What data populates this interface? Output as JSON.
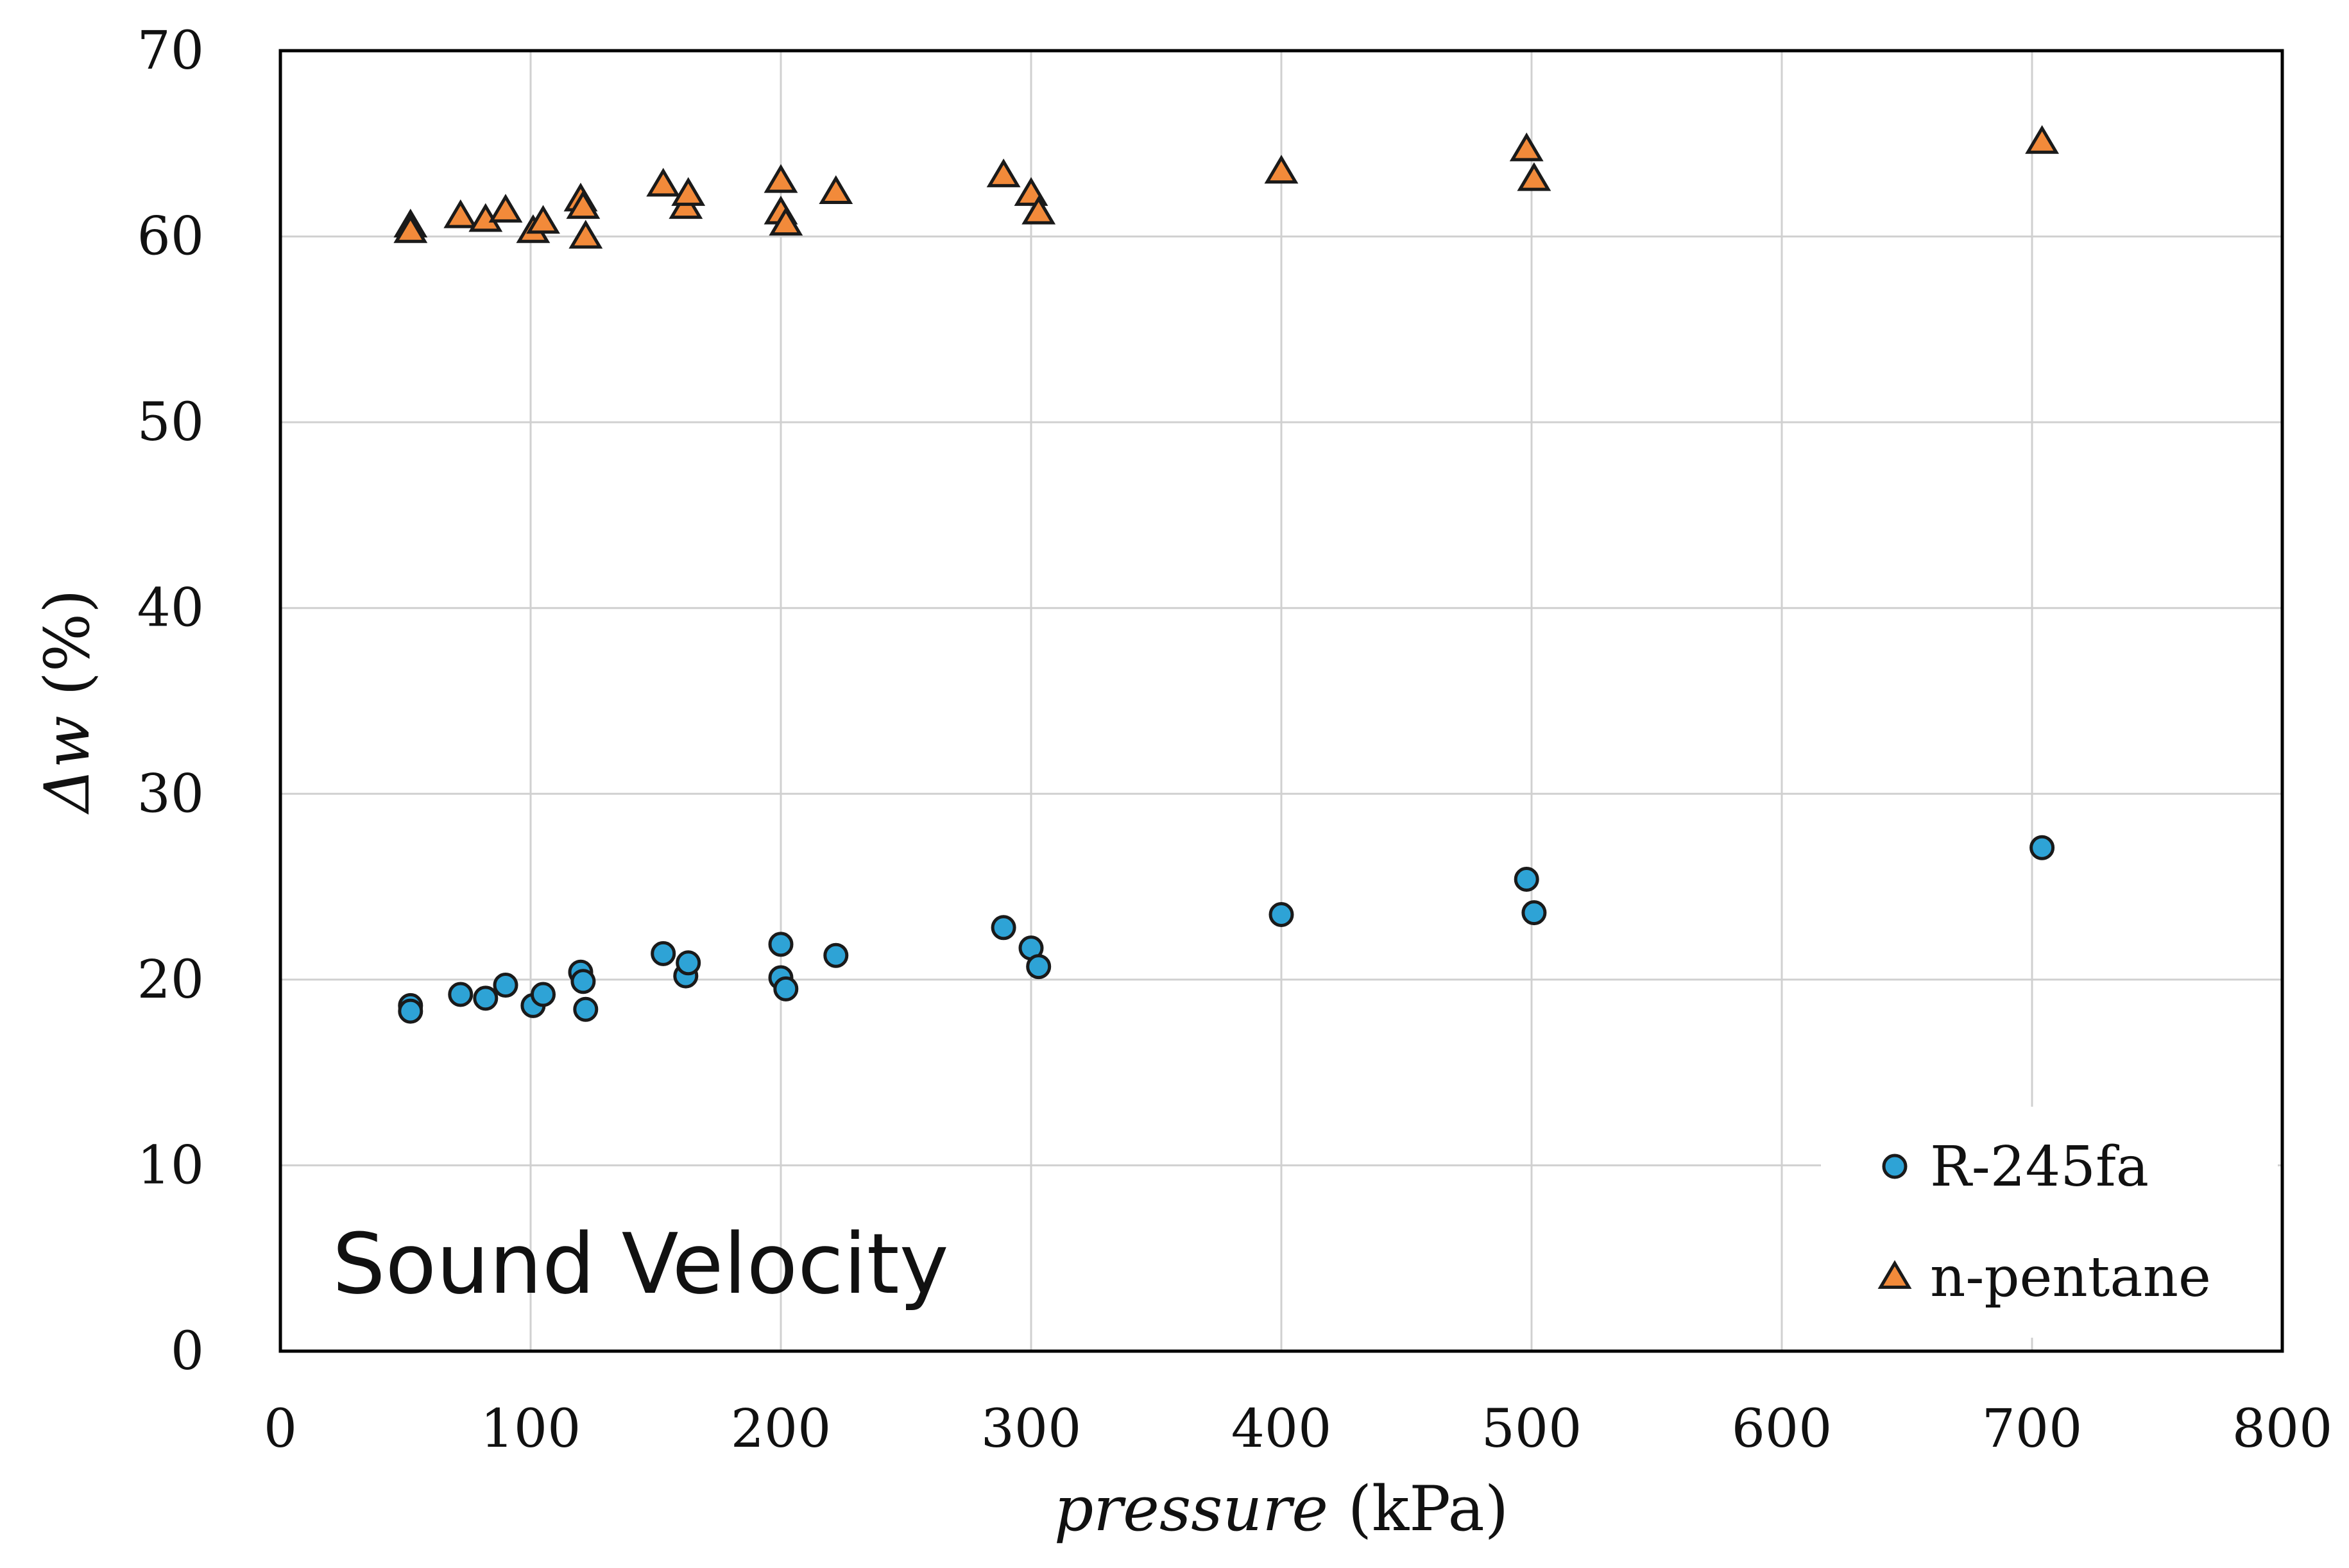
{
  "chart_data": {
    "type": "scatter",
    "title": "",
    "annotation": "Sound Velocity",
    "xlabel": {
      "italic": "pressure",
      "rest": " (kPa)"
    },
    "ylabel": {
      "italic": "Δw",
      "rest": " (%)"
    },
    "xlim": [
      0,
      800
    ],
    "ylim": [
      0,
      70
    ],
    "xticks": [
      0,
      100,
      200,
      300,
      400,
      500,
      600,
      700,
      800
    ],
    "yticks": [
      0,
      10,
      20,
      30,
      40,
      50,
      60,
      70
    ],
    "grid": true,
    "legend_position": "bottom-right",
    "series": [
      {
        "name": "R-245fa",
        "marker": "circle",
        "color": "#2ea3d6",
        "points": [
          [
            52,
            18.6
          ],
          [
            52,
            18.3
          ],
          [
            72,
            19.2
          ],
          [
            82,
            19.0
          ],
          [
            90,
            19.7
          ],
          [
            101,
            18.6
          ],
          [
            105,
            19.2
          ],
          [
            120,
            20.4
          ],
          [
            121,
            19.9
          ],
          [
            122,
            18.4
          ],
          [
            153,
            21.4
          ],
          [
            162,
            20.2
          ],
          [
            163,
            20.9
          ],
          [
            200,
            21.9
          ],
          [
            200,
            20.1
          ],
          [
            202,
            19.5
          ],
          [
            222,
            21.3
          ],
          [
            289,
            22.8
          ],
          [
            300,
            21.7
          ],
          [
            303,
            20.7
          ],
          [
            400,
            23.5
          ],
          [
            498,
            25.4
          ],
          [
            501,
            23.6
          ],
          [
            704,
            27.1
          ]
        ]
      },
      {
        "name": "n-pentane",
        "marker": "triangle",
        "color": "#f28a3a",
        "points": [
          [
            52,
            60.6
          ],
          [
            52,
            60.3
          ],
          [
            72,
            61.1
          ],
          [
            82,
            60.9
          ],
          [
            90,
            61.4
          ],
          [
            101,
            60.3
          ],
          [
            105,
            60.8
          ],
          [
            120,
            62.0
          ],
          [
            121,
            61.6
          ],
          [
            122,
            60.0
          ],
          [
            153,
            62.8
          ],
          [
            162,
            61.6
          ],
          [
            163,
            62.3
          ],
          [
            200,
            63.0
          ],
          [
            200,
            61.3
          ],
          [
            202,
            60.7
          ],
          [
            222,
            62.4
          ],
          [
            289,
            63.3
          ],
          [
            300,
            62.3
          ],
          [
            303,
            61.3
          ],
          [
            400,
            63.5
          ],
          [
            498,
            64.7
          ],
          [
            501,
            63.1
          ],
          [
            704,
            65.1
          ]
        ]
      }
    ]
  }
}
